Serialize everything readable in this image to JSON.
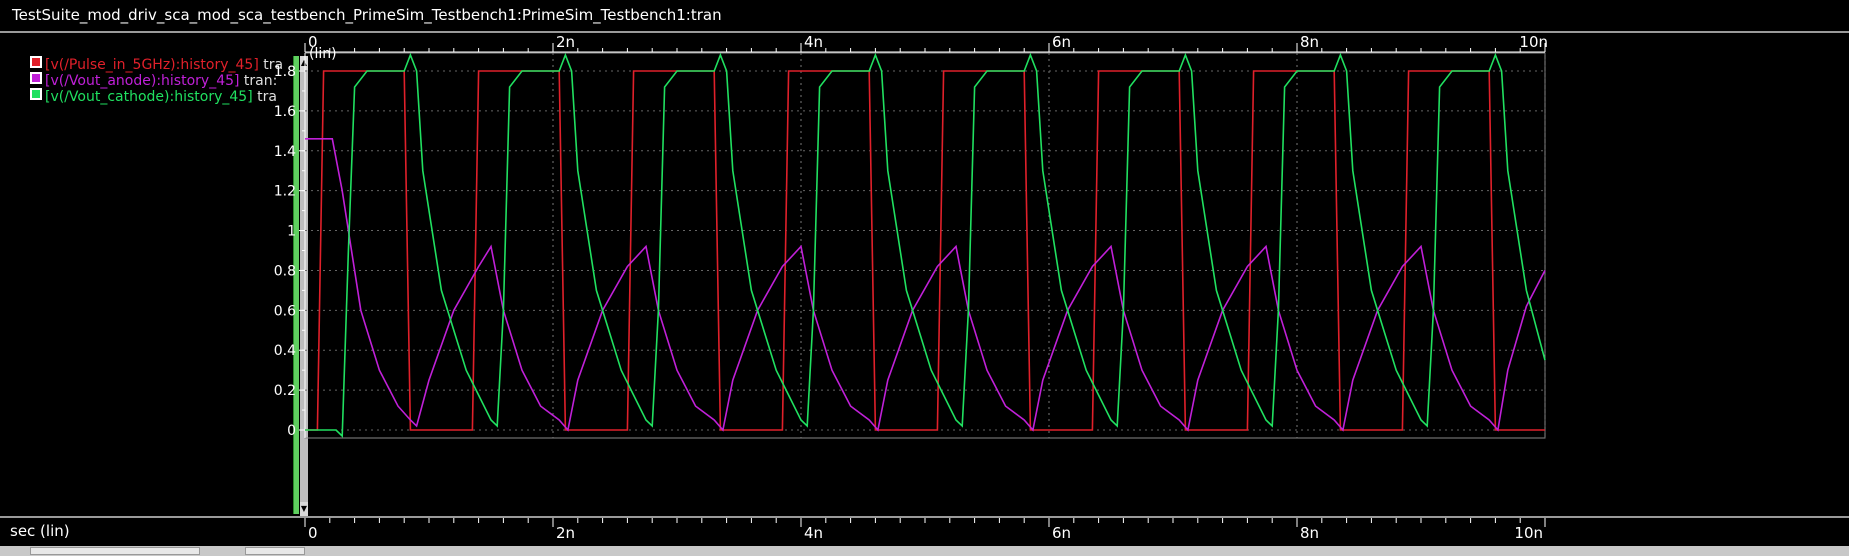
{
  "window": {
    "title": "TestSuite_mod_driv_sca_mod_sca_testbench_PrimeSim_Testbench1:PrimeSim_Testbench1:tran"
  },
  "legend": [
    {
      "label": "[v(/Pulse_in_5GHz):history_45]",
      "tail": " tra",
      "color": "#e0202a"
    },
    {
      "label": "[v(/Vout_anode):history_45]",
      "tail": " tran:",
      "color": "#c020d8"
    },
    {
      "label": "[v(/Vout_cathode):history_45]",
      "tail": " tra",
      "color": "#20e060"
    }
  ],
  "chart_data": {
    "type": "line",
    "title": "",
    "xlabel": "sec (lin)",
    "ylabel": "(lin)",
    "xlim": [
      0,
      10
    ],
    "ylim": [
      0,
      1.9
    ],
    "x_ticks": [
      "0",
      "2n",
      "4n",
      "6n",
      "8n",
      "10n"
    ],
    "y_ticks": [
      "0",
      "0.2",
      "0.4",
      "0.6",
      "0.8",
      "1",
      "1.2",
      "1.4",
      "1.6",
      "1.8"
    ],
    "grid": true,
    "series": [
      {
        "name": "[v(/Pulse_in_5GHz):history_45]",
        "color": "#e0202a",
        "x": [
          0,
          0.1,
          0.15,
          0.8,
          0.85,
          1.35,
          1.4,
          2.05,
          2.1,
          2.6,
          2.65,
          3.3,
          3.35,
          3.85,
          3.9,
          4.55,
          4.6,
          5.1,
          5.15,
          5.8,
          5.85,
          6.35,
          6.4,
          7.05,
          7.1,
          7.6,
          7.65,
          8.3,
          8.35,
          8.85,
          8.9,
          9.55,
          9.6,
          10
        ],
        "y": [
          0,
          0,
          1.8,
          1.8,
          0,
          0,
          1.8,
          1.8,
          0,
          0,
          1.8,
          1.8,
          0,
          0,
          1.8,
          1.8,
          0,
          0,
          1.8,
          1.8,
          0,
          0,
          1.8,
          1.8,
          0,
          0,
          1.8,
          1.8,
          0,
          0,
          1.8,
          1.8,
          0,
          0
        ]
      },
      {
        "name": "[v(/Vout_anode):history_45]",
        "color": "#c020d8",
        "x": [
          0,
          0.22,
          0.3,
          0.45,
          0.6,
          0.75,
          0.85,
          0.9,
          1.0,
          1.2,
          1.4,
          1.5,
          1.6,
          1.75,
          1.9,
          2.05,
          2.12,
          2.2,
          2.4,
          2.6,
          2.75,
          2.85,
          3.0,
          3.15,
          3.3,
          3.37,
          3.45,
          3.65,
          3.85,
          4.0,
          4.1,
          4.25,
          4.4,
          4.55,
          4.62,
          4.7,
          4.9,
          5.1,
          5.25,
          5.35,
          5.5,
          5.65,
          5.8,
          5.87,
          5.95,
          6.15,
          6.35,
          6.5,
          6.6,
          6.75,
          6.9,
          7.05,
          7.12,
          7.2,
          7.4,
          7.6,
          7.75,
          7.85,
          8.0,
          8.15,
          8.3,
          8.37,
          8.45,
          8.65,
          8.85,
          9.0,
          9.1,
          9.25,
          9.4,
          9.55,
          9.62,
          9.7,
          9.85,
          10
        ],
        "y": [
          1.46,
          1.46,
          1.2,
          0.6,
          0.3,
          0.12,
          0.05,
          0.02,
          0.25,
          0.6,
          0.82,
          0.92,
          0.6,
          0.3,
          0.12,
          0.05,
          0.0,
          0.25,
          0.6,
          0.82,
          0.92,
          0.6,
          0.3,
          0.12,
          0.05,
          0.0,
          0.25,
          0.6,
          0.82,
          0.92,
          0.6,
          0.3,
          0.12,
          0.05,
          0.0,
          0.25,
          0.6,
          0.82,
          0.92,
          0.6,
          0.3,
          0.12,
          0.05,
          0.0,
          0.25,
          0.6,
          0.82,
          0.92,
          0.6,
          0.3,
          0.12,
          0.05,
          0.0,
          0.25,
          0.6,
          0.82,
          0.92,
          0.6,
          0.3,
          0.12,
          0.05,
          0.0,
          0.25,
          0.6,
          0.82,
          0.92,
          0.6,
          0.3,
          0.12,
          0.05,
          0.0,
          0.3,
          0.62,
          0.8
        ]
      },
      {
        "name": "[v(/Vout_cathode):history_45]",
        "color": "#20e060",
        "x": [
          0,
          0.25,
          0.3,
          0.35,
          0.4,
          0.5,
          0.8,
          0.85,
          0.9,
          0.95,
          1.1,
          1.3,
          1.5,
          1.55,
          1.6,
          1.65,
          1.75,
          2.05,
          2.1,
          2.15,
          2.2,
          2.35,
          2.55,
          2.75,
          2.8,
          2.85,
          2.9,
          3.0,
          3.3,
          3.35,
          3.4,
          3.45,
          3.6,
          3.8,
          4.0,
          4.05,
          4.1,
          4.15,
          4.25,
          4.55,
          4.6,
          4.65,
          4.7,
          4.85,
          5.05,
          5.25,
          5.3,
          5.35,
          5.4,
          5.5,
          5.8,
          5.85,
          5.9,
          5.95,
          6.1,
          6.3,
          6.5,
          6.55,
          6.6,
          6.65,
          6.75,
          7.05,
          7.1,
          7.15,
          7.2,
          7.35,
          7.55,
          7.75,
          7.8,
          7.85,
          7.9,
          8.0,
          8.3,
          8.35,
          8.4,
          8.45,
          8.6,
          8.8,
          9.0,
          9.05,
          9.1,
          9.15,
          9.25,
          9.55,
          9.6,
          9.65,
          9.7,
          9.85,
          10
        ],
        "y": [
          0,
          0,
          -0.03,
          0.9,
          1.72,
          1.8,
          1.8,
          1.88,
          1.8,
          1.3,
          0.7,
          0.3,
          0.05,
          0.02,
          0.6,
          1.72,
          1.8,
          1.8,
          1.88,
          1.8,
          1.3,
          0.7,
          0.3,
          0.05,
          0.02,
          0.6,
          1.72,
          1.8,
          1.8,
          1.88,
          1.8,
          1.3,
          0.7,
          0.3,
          0.05,
          0.02,
          0.6,
          1.72,
          1.8,
          1.8,
          1.88,
          1.8,
          1.3,
          0.7,
          0.3,
          0.05,
          0.02,
          0.6,
          1.72,
          1.8,
          1.8,
          1.88,
          1.8,
          1.3,
          0.7,
          0.3,
          0.05,
          0.02,
          0.6,
          1.72,
          1.8,
          1.8,
          1.88,
          1.8,
          1.3,
          0.7,
          0.3,
          0.05,
          0.02,
          0.6,
          1.72,
          1.8,
          1.8,
          1.88,
          1.8,
          1.3,
          0.7,
          0.3,
          0.05,
          0.02,
          0.6,
          1.72,
          1.8,
          1.8,
          1.88,
          1.8,
          1.3,
          0.7,
          0.35
        ]
      }
    ]
  }
}
